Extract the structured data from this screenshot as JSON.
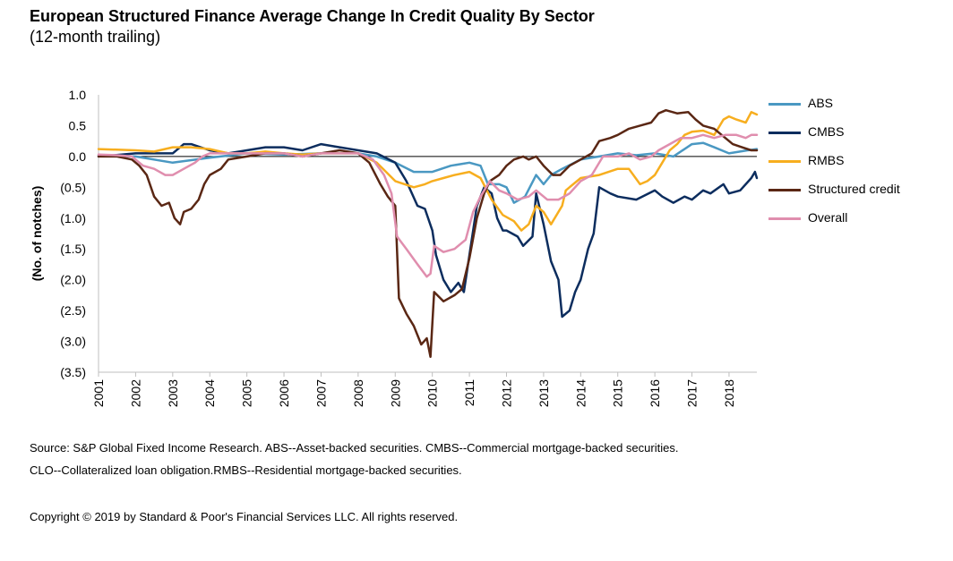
{
  "title": "European Structured Finance Average Change In Credit Quality By Sector",
  "subtitle": "(12-month trailing)",
  "footer": {
    "source_line1": "Source: S&P Global Fixed Income Research.  ABS--Asset-backed securities. CMBS--Commercial mortgage-backed securities.",
    "source_line2": "CLO--Collateralized loan obligation.RMBS--Residential mortgage-backed securities.",
    "copyright": "Copyright © 2019 by Standard & Poor's Financial Services LLC. All rights reserved."
  },
  "chart_data": {
    "type": "line",
    "title": "European Structured Finance Average Change In Credit Quality By Sector",
    "subtitle": "(12-month trailing)",
    "xlabel": "",
    "ylabel": "(No. of notches)",
    "x_ticks": [
      "2001",
      "2002",
      "2003",
      "2004",
      "2005",
      "2006",
      "2007",
      "2008",
      "2009",
      "2010",
      "2011",
      "2012",
      "2013",
      "2014",
      "2015",
      "2016",
      "2017",
      "2018"
    ],
    "xlim": [
      2001.0,
      2018.75
    ],
    "ylim": [
      -3.5,
      1.0
    ],
    "y_ticks": [
      1.0,
      0.5,
      0.0,
      -0.5,
      -1.0,
      -1.5,
      -2.0,
      -2.5,
      -3.0,
      -3.5
    ],
    "y_tick_labels": [
      "1.0",
      "0.5",
      "0.0",
      "(0.5)",
      "(1.0)",
      "(1.5)",
      "(2.0)",
      "(2.5)",
      "(3.0)",
      "(3.5)"
    ],
    "grid": false,
    "legend_position": "right",
    "series": [
      {
        "name": "ABS",
        "color": "#4a98c2",
        "points": [
          [
            2001,
            0.02
          ],
          [
            2002,
            0.0
          ],
          [
            2003,
            -0.1
          ],
          [
            2004,
            -0.02
          ],
          [
            2005,
            0.05
          ],
          [
            2006,
            0.03
          ],
          [
            2007,
            0.05
          ],
          [
            2008,
            0.05
          ],
          [
            2008.5,
            0.0
          ],
          [
            2009,
            -0.1
          ],
          [
            2009.5,
            -0.25
          ],
          [
            2010,
            -0.25
          ],
          [
            2010.5,
            -0.15
          ],
          [
            2011,
            -0.1
          ],
          [
            2011.3,
            -0.15
          ],
          [
            2011.5,
            -0.45
          ],
          [
            2011.8,
            -0.45
          ],
          [
            2012,
            -0.5
          ],
          [
            2012.2,
            -0.75
          ],
          [
            2012.5,
            -0.65
          ],
          [
            2012.8,
            -0.3
          ],
          [
            2013,
            -0.45
          ],
          [
            2013.2,
            -0.3
          ],
          [
            2013.5,
            -0.2
          ],
          [
            2014,
            -0.05
          ],
          [
            2014.5,
            0.0
          ],
          [
            2015,
            0.05
          ],
          [
            2015.5,
            0.02
          ],
          [
            2016,
            0.05
          ],
          [
            2016.5,
            0.0
          ],
          [
            2017,
            0.2
          ],
          [
            2017.3,
            0.22
          ],
          [
            2017.6,
            0.15
          ],
          [
            2018,
            0.05
          ],
          [
            2018.5,
            0.1
          ],
          [
            2018.75,
            0.12
          ]
        ]
      },
      {
        "name": "CMBS",
        "color": "#0c2d5e",
        "points": [
          [
            2001,
            0.0
          ],
          [
            2002,
            0.05
          ],
          [
            2002.5,
            0.05
          ],
          [
            2003,
            0.05
          ],
          [
            2003.3,
            0.2
          ],
          [
            2003.5,
            0.2
          ],
          [
            2004,
            0.1
          ],
          [
            2004.5,
            0.05
          ],
          [
            2005,
            0.1
          ],
          [
            2005.5,
            0.15
          ],
          [
            2006,
            0.15
          ],
          [
            2006.5,
            0.1
          ],
          [
            2007,
            0.2
          ],
          [
            2007.5,
            0.15
          ],
          [
            2008,
            0.1
          ],
          [
            2008.5,
            0.05
          ],
          [
            2009,
            -0.1
          ],
          [
            2009.3,
            -0.4
          ],
          [
            2009.6,
            -0.8
          ],
          [
            2009.8,
            -0.85
          ],
          [
            2010,
            -1.2
          ],
          [
            2010.1,
            -1.6
          ],
          [
            2010.3,
            -2.0
          ],
          [
            2010.5,
            -2.2
          ],
          [
            2010.7,
            -2.05
          ],
          [
            2010.85,
            -2.2
          ],
          [
            2011,
            -1.6
          ],
          [
            2011.2,
            -0.8
          ],
          [
            2011.4,
            -0.5
          ],
          [
            2011.6,
            -0.6
          ],
          [
            2011.75,
            -1.0
          ],
          [
            2011.9,
            -1.2
          ],
          [
            2012,
            -1.2
          ],
          [
            2012.3,
            -1.3
          ],
          [
            2012.45,
            -1.45
          ],
          [
            2012.7,
            -1.3
          ],
          [
            2012.8,
            -0.6
          ],
          [
            2013,
            -1.1
          ],
          [
            2013.2,
            -1.7
          ],
          [
            2013.4,
            -2.0
          ],
          [
            2013.5,
            -2.6
          ],
          [
            2013.7,
            -2.5
          ],
          [
            2013.85,
            -2.2
          ],
          [
            2014,
            -2.0
          ],
          [
            2014.2,
            -1.5
          ],
          [
            2014.35,
            -1.25
          ],
          [
            2014.5,
            -0.5
          ],
          [
            2014.8,
            -0.6
          ],
          [
            2015,
            -0.65
          ],
          [
            2015.5,
            -0.7
          ],
          [
            2016,
            -0.55
          ],
          [
            2016.2,
            -0.65
          ],
          [
            2016.5,
            -0.75
          ],
          [
            2016.8,
            -0.65
          ],
          [
            2017,
            -0.7
          ],
          [
            2017.3,
            -0.55
          ],
          [
            2017.5,
            -0.6
          ],
          [
            2017.85,
            -0.45
          ],
          [
            2018,
            -0.6
          ],
          [
            2018.3,
            -0.55
          ],
          [
            2018.6,
            -0.35
          ],
          [
            2018.7,
            -0.25
          ],
          [
            2018.75,
            -0.35
          ]
        ]
      },
      {
        "name": "RMBS",
        "color": "#f7ae1f",
        "points": [
          [
            2001,
            0.12
          ],
          [
            2002,
            0.1
          ],
          [
            2002.5,
            0.08
          ],
          [
            2003,
            0.15
          ],
          [
            2003.5,
            0.15
          ],
          [
            2004,
            0.12
          ],
          [
            2004.5,
            0.05
          ],
          [
            2005,
            0.05
          ],
          [
            2005.5,
            0.08
          ],
          [
            2006,
            0.05
          ],
          [
            2006.5,
            0.03
          ],
          [
            2007,
            0.05
          ],
          [
            2007.5,
            0.05
          ],
          [
            2008,
            0.05
          ],
          [
            2008.5,
            -0.1
          ],
          [
            2009,
            -0.4
          ],
          [
            2009.5,
            -0.5
          ],
          [
            2009.8,
            -0.45
          ],
          [
            2010,
            -0.4
          ],
          [
            2010.3,
            -0.35
          ],
          [
            2010.6,
            -0.3
          ],
          [
            2011,
            -0.25
          ],
          [
            2011.3,
            -0.35
          ],
          [
            2011.6,
            -0.7
          ],
          [
            2011.9,
            -0.95
          ],
          [
            2012.2,
            -1.05
          ],
          [
            2012.4,
            -1.2
          ],
          [
            2012.6,
            -1.1
          ],
          [
            2012.8,
            -0.8
          ],
          [
            2013,
            -0.9
          ],
          [
            2013.2,
            -1.1
          ],
          [
            2013.5,
            -0.8
          ],
          [
            2013.6,
            -0.55
          ],
          [
            2014,
            -0.35
          ],
          [
            2014.5,
            -0.3
          ],
          [
            2015,
            -0.2
          ],
          [
            2015.3,
            -0.2
          ],
          [
            2015.6,
            -0.45
          ],
          [
            2015.8,
            -0.4
          ],
          [
            2016,
            -0.3
          ],
          [
            2016.2,
            -0.1
          ],
          [
            2016.4,
            0.1
          ],
          [
            2016.6,
            0.2
          ],
          [
            2016.8,
            0.35
          ],
          [
            2017,
            0.4
          ],
          [
            2017.3,
            0.42
          ],
          [
            2017.6,
            0.35
          ],
          [
            2017.85,
            0.6
          ],
          [
            2018,
            0.65
          ],
          [
            2018.2,
            0.6
          ],
          [
            2018.45,
            0.55
          ],
          [
            2018.6,
            0.72
          ],
          [
            2018.75,
            0.68
          ]
        ]
      },
      {
        "name": "Structured credit",
        "color": "#5a2714",
        "points": [
          [
            2001,
            0.0
          ],
          [
            2001.5,
            0.0
          ],
          [
            2001.9,
            -0.05
          ],
          [
            2002.1,
            -0.15
          ],
          [
            2002.3,
            -0.3
          ],
          [
            2002.5,
            -0.65
          ],
          [
            2002.7,
            -0.8
          ],
          [
            2002.9,
            -0.75
          ],
          [
            2003.05,
            -1.0
          ],
          [
            2003.2,
            -1.1
          ],
          [
            2003.3,
            -0.9
          ],
          [
            2003.5,
            -0.85
          ],
          [
            2003.7,
            -0.7
          ],
          [
            2003.85,
            -0.45
          ],
          [
            2004,
            -0.3
          ],
          [
            2004.3,
            -0.2
          ],
          [
            2004.5,
            -0.05
          ],
          [
            2005,
            0.0
          ],
          [
            2005.5,
            0.05
          ],
          [
            2006,
            0.05
          ],
          [
            2006.5,
            0.0
          ],
          [
            2007,
            0.05
          ],
          [
            2007.5,
            0.1
          ],
          [
            2008,
            0.05
          ],
          [
            2008.3,
            -0.1
          ],
          [
            2008.6,
            -0.45
          ],
          [
            2008.8,
            -0.65
          ],
          [
            2009,
            -0.8
          ],
          [
            2009.1,
            -2.3
          ],
          [
            2009.3,
            -2.55
          ],
          [
            2009.5,
            -2.75
          ],
          [
            2009.7,
            -3.05
          ],
          [
            2009.85,
            -2.95
          ],
          [
            2009.95,
            -3.25
          ],
          [
            2010.05,
            -2.2
          ],
          [
            2010.3,
            -2.35
          ],
          [
            2010.6,
            -2.25
          ],
          [
            2010.8,
            -2.15
          ],
          [
            2011,
            -1.65
          ],
          [
            2011.2,
            -1.0
          ],
          [
            2011.4,
            -0.6
          ],
          [
            2011.55,
            -0.4
          ],
          [
            2011.8,
            -0.3
          ],
          [
            2012,
            -0.15
          ],
          [
            2012.2,
            -0.05
          ],
          [
            2012.45,
            0.0
          ],
          [
            2012.6,
            -0.05
          ],
          [
            2012.8,
            0.0
          ],
          [
            2013,
            -0.15
          ],
          [
            2013.25,
            -0.3
          ],
          [
            2013.45,
            -0.3
          ],
          [
            2013.7,
            -0.15
          ],
          [
            2014,
            -0.05
          ],
          [
            2014.3,
            0.05
          ],
          [
            2014.5,
            0.25
          ],
          [
            2014.8,
            0.3
          ],
          [
            2015,
            0.35
          ],
          [
            2015.3,
            0.45
          ],
          [
            2015.6,
            0.5
          ],
          [
            2015.9,
            0.55
          ],
          [
            2016.1,
            0.7
          ],
          [
            2016.3,
            0.75
          ],
          [
            2016.6,
            0.7
          ],
          [
            2016.9,
            0.72
          ],
          [
            2017.1,
            0.6
          ],
          [
            2017.3,
            0.5
          ],
          [
            2017.6,
            0.45
          ],
          [
            2017.9,
            0.3
          ],
          [
            2018.1,
            0.2
          ],
          [
            2018.35,
            0.15
          ],
          [
            2018.6,
            0.1
          ],
          [
            2018.75,
            0.1
          ]
        ]
      },
      {
        "name": "Overall",
        "color": "#e08eae",
        "points": [
          [
            2001,
            0.03
          ],
          [
            2001.5,
            0.02
          ],
          [
            2001.9,
            0.0
          ],
          [
            2002.2,
            -0.15
          ],
          [
            2002.5,
            -0.2
          ],
          [
            2002.8,
            -0.3
          ],
          [
            2003.0,
            -0.3
          ],
          [
            2003.3,
            -0.2
          ],
          [
            2003.6,
            -0.1
          ],
          [
            2003.8,
            0.0
          ],
          [
            2004,
            0.05
          ],
          [
            2004.5,
            0.05
          ],
          [
            2005,
            0.05
          ],
          [
            2005.5,
            0.05
          ],
          [
            2006,
            0.05
          ],
          [
            2006.5,
            0.0
          ],
          [
            2007,
            0.05
          ],
          [
            2007.5,
            0.05
          ],
          [
            2008,
            0.05
          ],
          [
            2008.4,
            -0.05
          ],
          [
            2008.7,
            -0.3
          ],
          [
            2008.9,
            -0.6
          ],
          [
            2009.05,
            -1.3
          ],
          [
            2009.3,
            -1.5
          ],
          [
            2009.6,
            -1.75
          ],
          [
            2009.85,
            -1.95
          ],
          [
            2009.95,
            -1.9
          ],
          [
            2010.05,
            -1.45
          ],
          [
            2010.3,
            -1.55
          ],
          [
            2010.6,
            -1.5
          ],
          [
            2010.9,
            -1.35
          ],
          [
            2011.1,
            -0.9
          ],
          [
            2011.3,
            -0.65
          ],
          [
            2011.55,
            -0.4
          ],
          [
            2011.8,
            -0.55
          ],
          [
            2012,
            -0.6
          ],
          [
            2012.3,
            -0.7
          ],
          [
            2012.6,
            -0.65
          ],
          [
            2012.8,
            -0.55
          ],
          [
            2013.1,
            -0.7
          ],
          [
            2013.4,
            -0.7
          ],
          [
            2013.7,
            -0.6
          ],
          [
            2014,
            -0.4
          ],
          [
            2014.3,
            -0.3
          ],
          [
            2014.6,
            0.0
          ],
          [
            2015,
            0.0
          ],
          [
            2015.3,
            0.05
          ],
          [
            2015.6,
            -0.05
          ],
          [
            2015.9,
            0.0
          ],
          [
            2016.1,
            0.1
          ],
          [
            2016.4,
            0.2
          ],
          [
            2016.7,
            0.3
          ],
          [
            2017,
            0.3
          ],
          [
            2017.3,
            0.35
          ],
          [
            2017.6,
            0.3
          ],
          [
            2017.9,
            0.35
          ],
          [
            2018.2,
            0.35
          ],
          [
            2018.45,
            0.3
          ],
          [
            2018.6,
            0.35
          ],
          [
            2018.75,
            0.35
          ]
        ]
      }
    ]
  }
}
